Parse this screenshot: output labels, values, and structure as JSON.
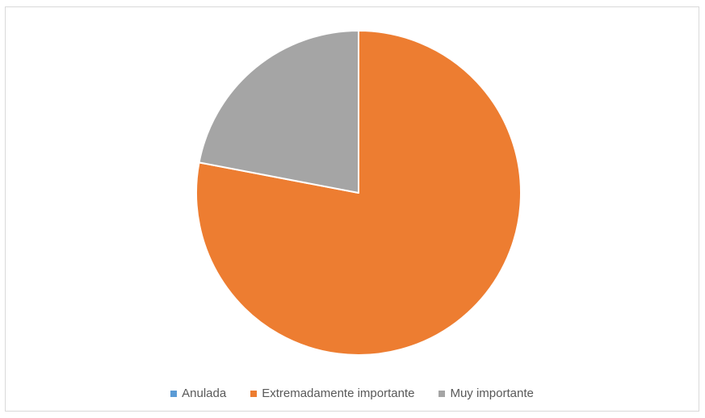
{
  "chart_data": {
    "type": "pie",
    "categories": [
      "Anulada",
      "Extremadamente importante",
      "Muy importante"
    ],
    "values": [
      0,
      78,
      22
    ],
    "colors": [
      "#5b9bd5",
      "#ed7d31",
      "#a5a5a5"
    ],
    "title": "",
    "legend_position": "bottom"
  }
}
